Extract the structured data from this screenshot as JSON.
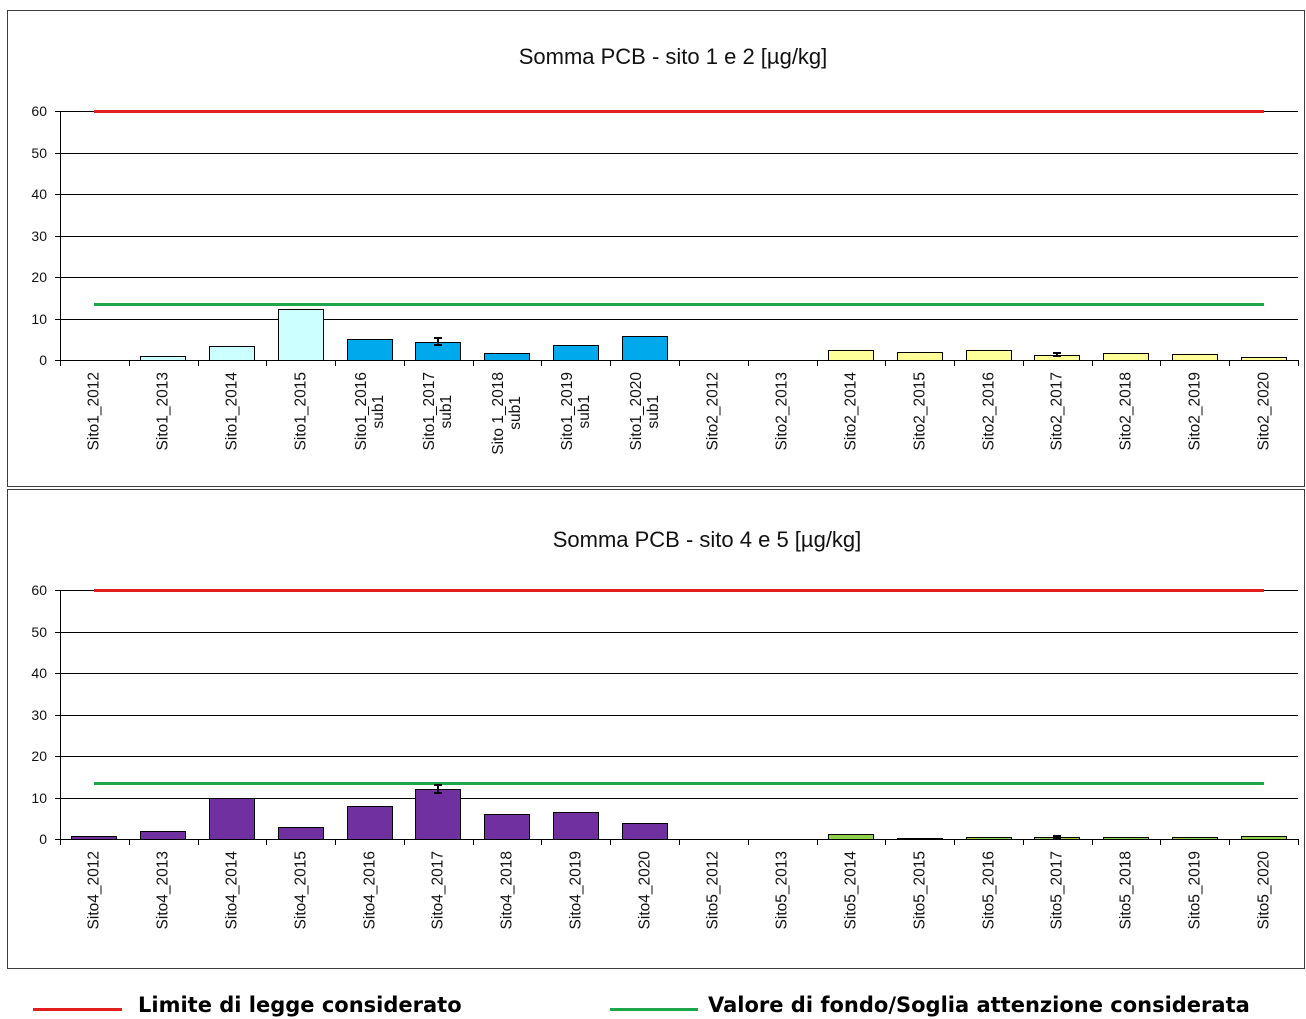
{
  "chart_data": [
    {
      "type": "bar",
      "title": "Somma PCB - sito 1 e 2 [µg/kg]",
      "categories": [
        "Sito1_2012",
        "Sito1_2013",
        "Sito1_2014",
        "Sito1_2015",
        "Sito1_2016\nsub1",
        "Sito1_2017\nsub1",
        "Sito 1_2018\nsub1",
        "Sito1_2019\nsub1",
        "Sito1_2020\nsub1",
        "Sito2_2012",
        "Sito2_2013",
        "Sito2_2014",
        "Sito2_2015",
        "Sito2_2016",
        "Sito2_2017",
        "Sito2_2018",
        "Sito2_2019",
        "Sito2_2020"
      ],
      "values": [
        0,
        1.0,
        3.4,
        12.3,
        5.1,
        4.4,
        1.7,
        3.6,
        5.8,
        0,
        0,
        2.4,
        1.9,
        2.4,
        1.3,
        1.6,
        1.4,
        0.8
      ],
      "errors": [
        null,
        null,
        null,
        null,
        null,
        0.9,
        null,
        null,
        null,
        null,
        null,
        null,
        null,
        null,
        0.4,
        null,
        null,
        null
      ],
      "bar_colors": [
        "#ccffff",
        "#ccffff",
        "#ccffff",
        "#ccffff",
        "#00a8ec",
        "#00a8ec",
        "#00a8ec",
        "#00a8ec",
        "#00a8ec",
        "#ffff99",
        "#ffff99",
        "#ffff99",
        "#ffff99",
        "#ffff99",
        "#ffff99",
        "#ffff99",
        "#ffff99",
        "#ffff99"
      ],
      "reference_lines": [
        {
          "value": 60,
          "color": "#e21f1f"
        },
        {
          "value": 13.3,
          "color": "#1da64a"
        }
      ],
      "ylim": [
        0,
        60
      ],
      "yticks": [
        0,
        10,
        20,
        30,
        40,
        50,
        60
      ],
      "grid": true
    },
    {
      "type": "bar",
      "title": "Somma PCB - sito 4 e 5 [µg/kg]",
      "categories": [
        "Sito4_2012",
        "Sito4_2013",
        "Sito4_2014",
        "Sito4_2015",
        "Sito4_2016",
        "Sito4_2017",
        "Sito4_2018",
        "Sito4_2019",
        "Sito4_2020",
        "Sito5_2012",
        "Sito5_2013",
        "Sito5_2014",
        "Sito5_2015",
        "Sito5_2016",
        "Sito5_2017",
        "Sito5_2018",
        "Sito5_2019",
        "Sito5_2020"
      ],
      "values": [
        0.8,
        1.9,
        9.9,
        2.9,
        7.9,
        12.0,
        6.1,
        6.4,
        3.9,
        0,
        0,
        1.3,
        0.2,
        0.5,
        0.5,
        0.5,
        0.5,
        0.8
      ],
      "errors": [
        null,
        null,
        null,
        null,
        null,
        0.9,
        null,
        null,
        null,
        null,
        null,
        null,
        null,
        null,
        0.2,
        null,
        null,
        null
      ],
      "bar_colors": [
        "#7030a0",
        "#7030a0",
        "#7030a0",
        "#7030a0",
        "#7030a0",
        "#7030a0",
        "#7030a0",
        "#7030a0",
        "#7030a0",
        "#92d050",
        "#92d050",
        "#92d050",
        "#92d050",
        "#92d050",
        "#92d050",
        "#92d050",
        "#92d050",
        "#92d050"
      ],
      "reference_lines": [
        {
          "value": 60,
          "color": "#e21f1f"
        },
        {
          "value": 13.3,
          "color": "#1da64a"
        }
      ],
      "ylim": [
        0,
        60
      ],
      "yticks": [
        0,
        10,
        20,
        30,
        40,
        50,
        60
      ],
      "grid": true
    }
  ],
  "legend": {
    "position": "bottom",
    "entries": [
      {
        "label": "Limite di legge considerato",
        "color": "#e21f1f"
      },
      {
        "label": "Valore di fondo/Soglia attenzione considerata",
        "color": "#1da64a"
      }
    ]
  }
}
